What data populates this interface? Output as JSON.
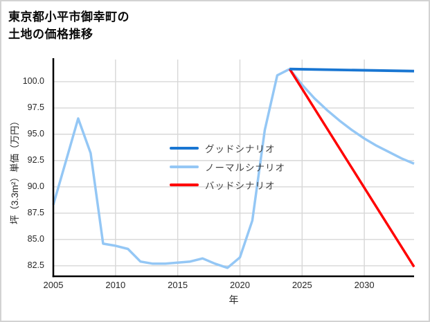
{
  "chart_data": {
    "type": "line",
    "title": "東京都小平市御幸町の\n土地の価格推移",
    "xlabel": "年",
    "ylabel": "坪（3.3m²）単価（万円）",
    "xlim": [
      2005,
      2034
    ],
    "ylim": [
      81.5,
      102.1
    ],
    "x_ticks": [
      2005,
      2010,
      2015,
      2020,
      2025,
      2030
    ],
    "y_ticks": [
      82.5,
      85.0,
      87.5,
      90.0,
      92.5,
      95.0,
      97.5,
      100.0
    ],
    "grid": true,
    "legend_position": "center-left-inside",
    "colors": {
      "good": "#1976d2",
      "normal": "#94c7f5",
      "bad": "#ff0000",
      "gridline": "#d7d7d7",
      "spine": "#000000"
    },
    "draw_order": [
      1,
      2,
      0
    ],
    "series": [
      {
        "name": "グッドシナリオ",
        "color": "#1976d2",
        "x": [
          2024,
          2034
        ],
        "values": [
          101.2,
          101.0
        ]
      },
      {
        "name": "ノーマルシナリオ",
        "color": "#94c7f5",
        "x": [
          2005,
          2006,
          2007,
          2008,
          2009,
          2010,
          2011,
          2012,
          2013,
          2014,
          2015,
          2016,
          2017,
          2018,
          2019,
          2020,
          2021,
          2022,
          2023,
          2024,
          2025,
          2026,
          2027,
          2028,
          2029,
          2030,
          2031,
          2032,
          2033,
          2034
        ],
        "values": [
          88.3,
          92.4,
          96.5,
          93.2,
          84.6,
          84.4,
          84.1,
          82.9,
          82.7,
          82.7,
          82.8,
          82.9,
          83.2,
          82.7,
          82.3,
          83.3,
          86.8,
          95.4,
          100.6,
          101.2,
          99.7,
          98.4,
          97.3,
          96.3,
          95.4,
          94.6,
          93.9,
          93.3,
          92.7,
          92.2
        ]
      },
      {
        "name": "バッドシナリオ",
        "color": "#ff0000",
        "x": [
          2024,
          2034
        ],
        "values": [
          101.2,
          82.4
        ]
      }
    ]
  }
}
